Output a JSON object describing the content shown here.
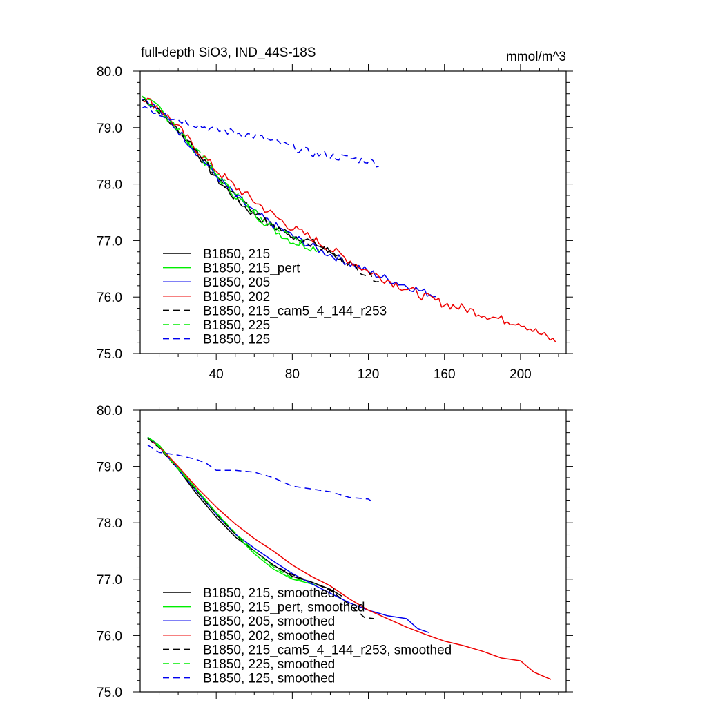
{
  "figure": {
    "title": "full-depth SiO3, IND_44S-18S",
    "units": "mmol/m^3"
  },
  "chart_data": [
    {
      "type": "line",
      "title": "full-depth SiO3, IND_44S-18S",
      "units": "mmol/m^3",
      "xlim": [
        0,
        224
      ],
      "ylim": [
        75.0,
        80.0
      ],
      "x_ticks": [
        40,
        80,
        120,
        160,
        200
      ],
      "y_ticks": [
        "80.0",
        "79.0",
        "78.0",
        "77.0",
        "76.0",
        "75.0"
      ],
      "legend_position": "lower-left",
      "series": [
        {
          "name": "B1850, 215",
          "color": "#000000",
          "dash": "solid",
          "noise": 0.07,
          "points": [
            [
              1,
              79.55
            ],
            [
              10,
              79.3
            ],
            [
              20,
              78.95
            ],
            [
              30,
              78.55
            ],
            [
              40,
              78.1
            ],
            [
              50,
              77.75
            ],
            [
              60,
              77.45
            ],
            [
              70,
              77.25
            ],
            [
              80,
              77.1
            ],
            [
              90,
              76.98
            ],
            [
              100,
              76.8
            ],
            [
              108,
              76.62
            ]
          ]
        },
        {
          "name": "B1850, 215_pert",
          "color": "#00ee00",
          "dash": "solid",
          "noise": 0.07,
          "points": [
            [
              1,
              79.5
            ],
            [
              10,
              79.35
            ],
            [
              20,
              78.95
            ],
            [
              30,
              78.55
            ],
            [
              40,
              78.15
            ],
            [
              50,
              77.8
            ],
            [
              60,
              77.48
            ],
            [
              70,
              77.2
            ],
            [
              80,
              76.98
            ],
            [
              90,
              76.88
            ],
            [
              94,
              76.85
            ]
          ]
        },
        {
          "name": "B1850, 205",
          "color": "#0000ee",
          "dash": "solid",
          "noise": 0.07,
          "points": [
            [
              1,
              79.55
            ],
            [
              10,
              79.3
            ],
            [
              20,
              78.95
            ],
            [
              30,
              78.55
            ],
            [
              40,
              78.15
            ],
            [
              50,
              77.8
            ],
            [
              60,
              77.5
            ],
            [
              70,
              77.28
            ],
            [
              80,
              77.08
            ],
            [
              90,
              76.9
            ],
            [
              100,
              76.75
            ],
            [
              110,
              76.6
            ],
            [
              120,
              76.45
            ],
            [
              130,
              76.32
            ],
            [
              140,
              76.2
            ],
            [
              150,
              76.08
            ],
            [
              156,
              76.02
            ]
          ]
        },
        {
          "name": "B1850, 202",
          "color": "#ee0000",
          "dash": "solid",
          "noise": 0.08,
          "points": [
            [
              1,
              79.55
            ],
            [
              10,
              79.35
            ],
            [
              20,
              79.0
            ],
            [
              30,
              78.6
            ],
            [
              40,
              78.25
            ],
            [
              50,
              77.95
            ],
            [
              60,
              77.7
            ],
            [
              70,
              77.45
            ],
            [
              80,
              77.22
            ],
            [
              90,
              77.05
            ],
            [
              100,
              76.85
            ],
            [
              110,
              76.65
            ],
            [
              120,
              76.45
            ],
            [
              130,
              76.3
            ],
            [
              140,
              76.15
            ],
            [
              150,
              76.0
            ],
            [
              160,
              75.88
            ],
            [
              170,
              75.8
            ],
            [
              180,
              75.7
            ],
            [
              190,
              75.6
            ],
            [
              200,
              75.55
            ],
            [
              210,
              75.35
            ],
            [
              219,
              75.2
            ]
          ]
        },
        {
          "name": "B1850, 215_cam5_4_144_r253",
          "color": "#000000",
          "dash": "dashed",
          "noise": 0.06,
          "points": [
            [
              1,
              79.5
            ],
            [
              10,
              79.3
            ],
            [
              20,
              78.95
            ],
            [
              30,
              78.6
            ],
            [
              40,
              78.15
            ],
            [
              50,
              77.8
            ],
            [
              60,
              77.5
            ],
            [
              70,
              77.25
            ],
            [
              80,
              77.08
            ],
            [
              90,
              76.95
            ],
            [
              100,
              76.8
            ],
            [
              110,
              76.6
            ],
            [
              120,
              76.38
            ],
            [
              126,
              76.3
            ]
          ]
        },
        {
          "name": "B1850, 225",
          "color": "#00ee00",
          "dash": "dashed",
          "noise": 0.06,
          "points": [
            [
              1,
              79.55
            ],
            [
              10,
              79.3
            ],
            [
              20,
              78.95
            ],
            [
              30,
              78.6
            ],
            [
              40,
              78.2
            ],
            [
              50,
              77.85
            ],
            [
              60,
              77.5
            ],
            [
              70,
              77.25
            ],
            [
              80,
              77.05
            ],
            [
              87,
              76.95
            ]
          ]
        },
        {
          "name": "B1850, 125",
          "color": "#0000ee",
          "dash": "dashed",
          "noise": 0.07,
          "points": [
            [
              1,
              79.4
            ],
            [
              10,
              79.25
            ],
            [
              20,
              79.15
            ],
            [
              30,
              79.05
            ],
            [
              40,
              78.95
            ],
            [
              50,
              78.92
            ],
            [
              60,
              78.85
            ],
            [
              70,
              78.75
            ],
            [
              80,
              78.65
            ],
            [
              90,
              78.55
            ],
            [
              100,
              78.5
            ],
            [
              110,
              78.45
            ],
            [
              120,
              78.42
            ],
            [
              126,
              78.35
            ]
          ]
        }
      ]
    },
    {
      "type": "line",
      "xlim": [
        0,
        224
      ],
      "ylim": [
        75.0,
        80.0
      ],
      "y_ticks": [
        "80.0",
        "79.0",
        "78.0",
        "77.0",
        "76.0",
        "75.0"
      ],
      "legend_position": "lower-left",
      "series": [
        {
          "name": "B1850, 215, smoothed",
          "color": "#000000",
          "dash": "solid",
          "noise": 0,
          "points": [
            [
              4,
              79.5
            ],
            [
              10,
              79.35
            ],
            [
              20,
              78.95
            ],
            [
              30,
              78.5
            ],
            [
              40,
              78.1
            ],
            [
              50,
              77.75
            ],
            [
              60,
              77.5
            ],
            [
              70,
              77.25
            ],
            [
              80,
              77.05
            ],
            [
              90,
              76.95
            ],
            [
              100,
              76.82
            ],
            [
              106,
              76.7
            ]
          ]
        },
        {
          "name": "B1850, 215_pert, smoothed",
          "color": "#00ee00",
          "dash": "solid",
          "noise": 0,
          "points": [
            [
              4,
              79.52
            ],
            [
              10,
              79.38
            ],
            [
              20,
              78.98
            ],
            [
              30,
              78.58
            ],
            [
              40,
              78.18
            ],
            [
              50,
              77.8
            ],
            [
              60,
              77.45
            ],
            [
              70,
              77.18
            ],
            [
              80,
              77.0
            ],
            [
              92,
              76.9
            ]
          ]
        },
        {
          "name": "B1850, 205, smoothed",
          "color": "#0000ee",
          "dash": "solid",
          "noise": 0,
          "points": [
            [
              4,
              79.52
            ],
            [
              10,
              79.35
            ],
            [
              20,
              78.95
            ],
            [
              30,
              78.55
            ],
            [
              40,
              78.15
            ],
            [
              50,
              77.8
            ],
            [
              60,
              77.55
            ],
            [
              70,
              77.32
            ],
            [
              80,
              77.1
            ],
            [
              90,
              76.92
            ],
            [
              100,
              76.75
            ],
            [
              110,
              76.58
            ],
            [
              120,
              76.45
            ],
            [
              130,
              76.35
            ],
            [
              140,
              76.3
            ],
            [
              146,
              76.12
            ],
            [
              152,
              76.05
            ]
          ]
        },
        {
          "name": "B1850, 202, smoothed",
          "color": "#ee0000",
          "dash": "solid",
          "noise": 0,
          "points": [
            [
              4,
              79.5
            ],
            [
              10,
              79.35
            ],
            [
              20,
              79.0
            ],
            [
              30,
              78.62
            ],
            [
              40,
              78.28
            ],
            [
              50,
              77.98
            ],
            [
              60,
              77.72
            ],
            [
              70,
              77.5
            ],
            [
              80,
              77.25
            ],
            [
              90,
              77.05
            ],
            [
              100,
              76.88
            ],
            [
              110,
              76.65
            ],
            [
              120,
              76.45
            ],
            [
              130,
              76.3
            ],
            [
              140,
              76.15
            ],
            [
              150,
              76.02
            ],
            [
              160,
              75.9
            ],
            [
              170,
              75.82
            ],
            [
              180,
              75.72
            ],
            [
              190,
              75.6
            ],
            [
              200,
              75.55
            ],
            [
              207,
              75.35
            ],
            [
              216,
              75.22
            ]
          ]
        },
        {
          "name": "B1850, 215_cam5_4_144_r253, smoothed",
          "color": "#000000",
          "dash": "dashed",
          "noise": 0,
          "points": [
            [
              4,
              79.5
            ],
            [
              10,
              79.33
            ],
            [
              20,
              78.95
            ],
            [
              30,
              78.55
            ],
            [
              40,
              78.15
            ],
            [
              50,
              77.8
            ],
            [
              60,
              77.5
            ],
            [
              70,
              77.25
            ],
            [
              80,
              77.08
            ],
            [
              90,
              76.95
            ],
            [
              100,
              76.8
            ],
            [
              110,
              76.55
            ],
            [
              118,
              76.32
            ],
            [
              123,
              76.3
            ]
          ]
        },
        {
          "name": "B1850, 225, smoothed",
          "color": "#00ee00",
          "dash": "dashed",
          "noise": 0,
          "points": [
            [
              4,
              79.52
            ],
            [
              10,
              79.35
            ],
            [
              20,
              78.95
            ],
            [
              30,
              78.58
            ],
            [
              40,
              78.18
            ],
            [
              50,
              77.82
            ],
            [
              60,
              77.5
            ],
            [
              70,
              77.22
            ],
            [
              80,
              77.02
            ],
            [
              86,
              76.97
            ]
          ]
        },
        {
          "name": "B1850, 125, smoothed",
          "color": "#0000ee",
          "dash": "dashed",
          "noise": 0,
          "points": [
            [
              4,
              79.38
            ],
            [
              10,
              79.25
            ],
            [
              20,
              79.2
            ],
            [
              30,
              79.12
            ],
            [
              35,
              79.05
            ],
            [
              40,
              78.93
            ],
            [
              50,
              78.93
            ],
            [
              60,
              78.9
            ],
            [
              70,
              78.8
            ],
            [
              80,
              78.65
            ],
            [
              90,
              78.6
            ],
            [
              100,
              78.55
            ],
            [
              110,
              78.45
            ],
            [
              120,
              78.42
            ],
            [
              123,
              78.35
            ]
          ]
        }
      ]
    }
  ]
}
